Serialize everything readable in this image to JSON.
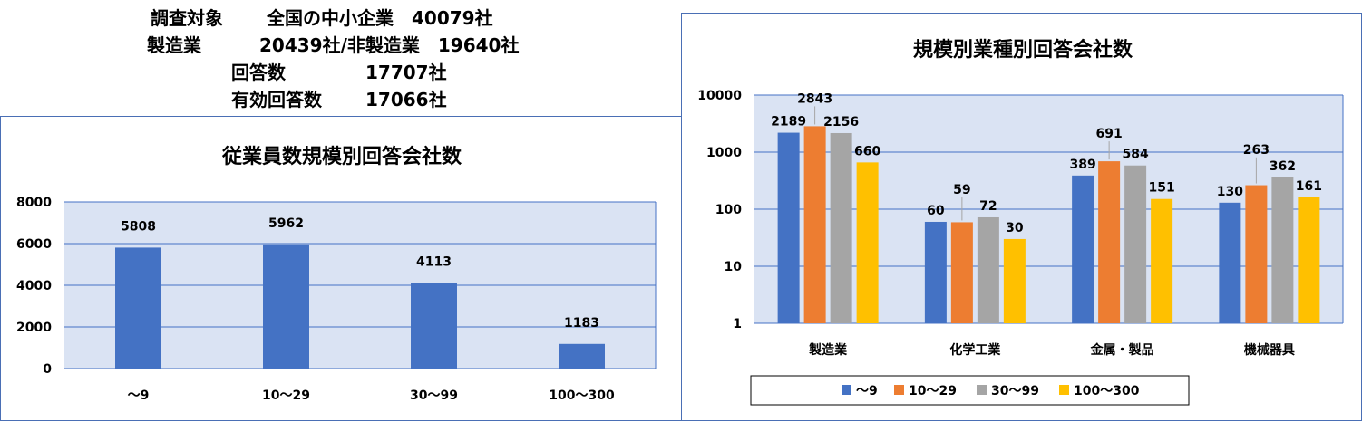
{
  "summary": {
    "line1_label": "調査対象",
    "line1_value": "全国の中小企業　40079社",
    "line2_label": "製造業",
    "line2_value": "20439社/非製造業　19640社",
    "line3_label": "回答数",
    "line3_value": "17707社",
    "line4_label": "有効回答数",
    "line4_value": "17066社"
  },
  "chart_data": [
    {
      "type": "bar",
      "title": "従業員数規模別回答会社数",
      "categories": [
        "～9",
        "10～29",
        "30～99",
        "100～300"
      ],
      "values": [
        5808,
        5962,
        4113,
        1183
      ],
      "ylim": [
        0,
        8000
      ],
      "yticks": [
        "0",
        "2000",
        "4000",
        "6000",
        "8000"
      ],
      "grid": true,
      "colors": {
        "bar": "#4472C4",
        "plot_bg": "#DAE3F3",
        "grid": "#4472C4"
      }
    },
    {
      "type": "bar",
      "title": "規模別業種別回答会社数",
      "scale": "log",
      "categories": [
        "製造業",
        "化学工業",
        "金属・製品",
        "機械器具"
      ],
      "series": [
        {
          "name": "～9",
          "values": [
            2189,
            60,
            389,
            130
          ],
          "color": "#4472C4"
        },
        {
          "name": "10～29",
          "values": [
            2843,
            59,
            691,
            263
          ],
          "color": "#ED7D31"
        },
        {
          "name": "30～99",
          "values": [
            2156,
            72,
            584,
            362
          ],
          "color": "#A5A5A5"
        },
        {
          "name": "100～300",
          "values": [
            660,
            30,
            151,
            161
          ],
          "color": "#FFC000"
        }
      ],
      "ylim": [
        1,
        10000
      ],
      "yticks": [
        "1",
        "10",
        "100",
        "1000",
        "10000"
      ],
      "grid": true,
      "legend": "bottom",
      "colors": {
        "plot_bg": "#DAE3F3",
        "grid": "#4472C4"
      }
    }
  ]
}
